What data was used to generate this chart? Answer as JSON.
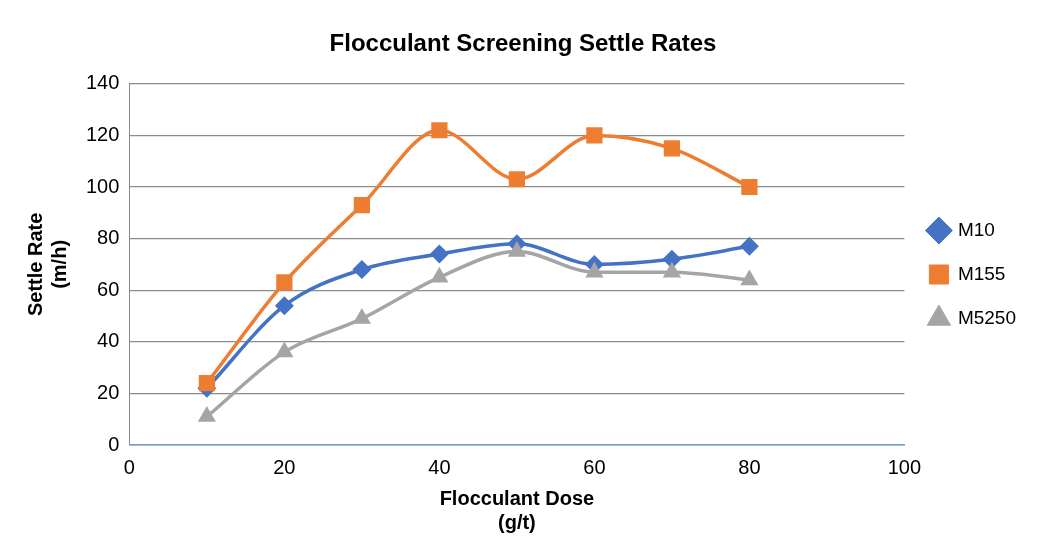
{
  "chart_data": {
    "type": "line",
    "title": "Flocculant Screening Settle Rates",
    "xlabel": "Flocculant Dose\n(g/t)",
    "ylabel": "Settle Rate\n(m/h)",
    "x": [
      10,
      20,
      30,
      40,
      50,
      60,
      70,
      80
    ],
    "series": [
      {
        "name": "M10",
        "color": "#4472c4",
        "marker": "diamond",
        "values": [
          22,
          54,
          68,
          74,
          78,
          70,
          72,
          77
        ]
      },
      {
        "name": "M155",
        "color": "#ed7d31",
        "marker": "square",
        "values": [
          24,
          63,
          93,
          122,
          103,
          120,
          115,
          100
        ]
      },
      {
        "name": "M5250",
        "color": "#a5a5a5",
        "marker": "triangle",
        "values": [
          11,
          36,
          49,
          65,
          75,
          67,
          67,
          64
        ]
      }
    ],
    "xlim": [
      0,
      100
    ],
    "xticks": [
      0,
      20,
      40,
      60,
      80,
      100
    ],
    "ylim": [
      0,
      140
    ],
    "yticks": [
      0,
      20,
      40,
      60,
      80,
      100,
      120,
      140
    ],
    "grid": "y",
    "legend": "right"
  }
}
